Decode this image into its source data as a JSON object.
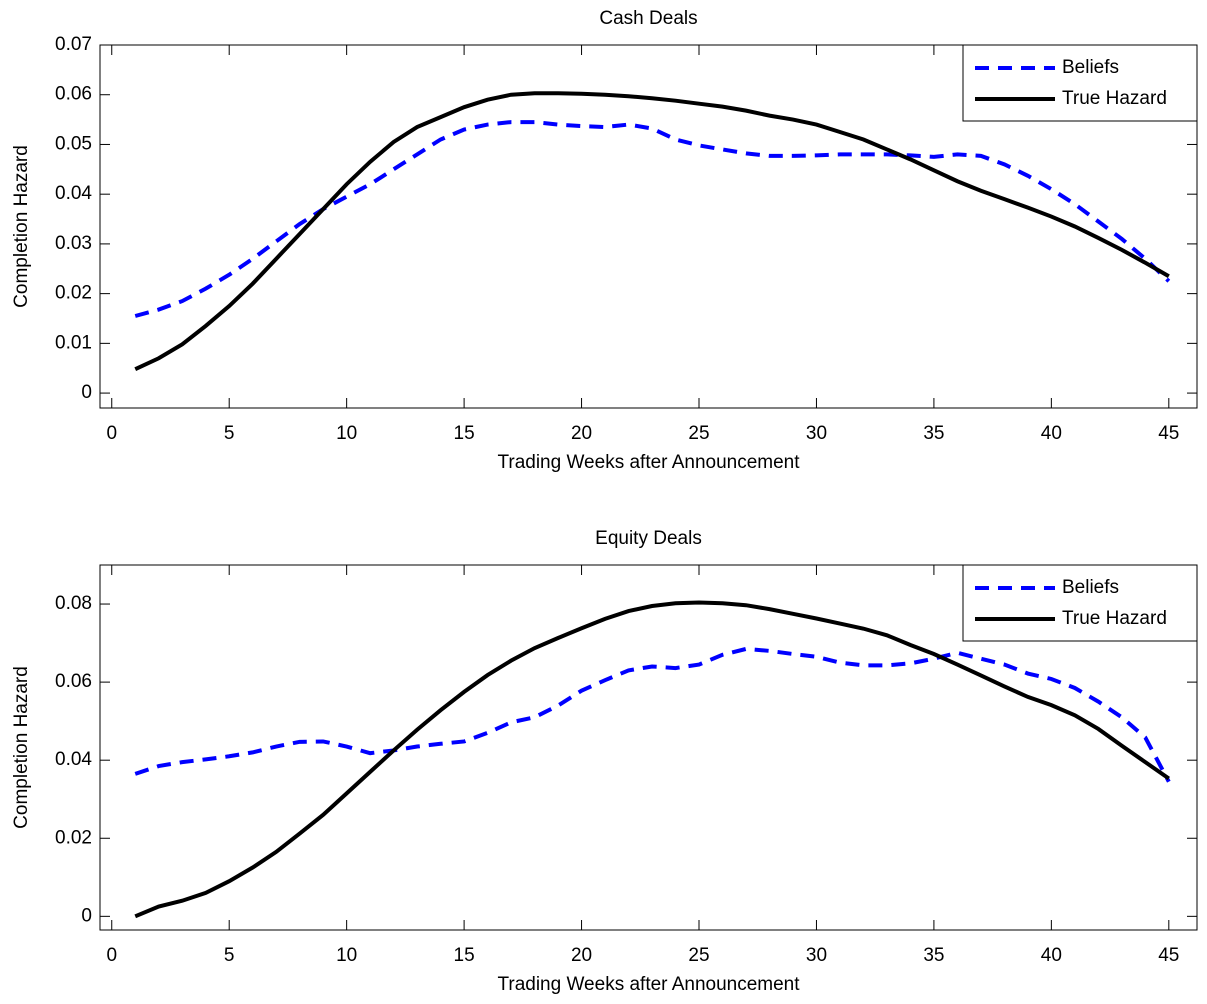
{
  "chart_data": [
    {
      "type": "line",
      "title": "Cash Deals",
      "x_label": "Trading Weeks after Announcement",
      "y_label": "Completion Hazard",
      "x": [
        1,
        2,
        3,
        4,
        5,
        6,
        7,
        8,
        9,
        10,
        11,
        12,
        13,
        14,
        15,
        16,
        17,
        18,
        19,
        20,
        21,
        22,
        23,
        24,
        25,
        26,
        27,
        28,
        29,
        30,
        31,
        32,
        33,
        34,
        35,
        36,
        37,
        38,
        39,
        40,
        41,
        42,
        43,
        44,
        45
      ],
      "series": [
        {
          "name": "Beliefs",
          "color": "#0000ff",
          "dashed": true,
          "values": [
            0.0155,
            0.0168,
            0.0185,
            0.021,
            0.0238,
            0.027,
            0.0305,
            0.034,
            0.037,
            0.0395,
            0.042,
            0.045,
            0.048,
            0.051,
            0.053,
            0.054,
            0.0545,
            0.0545,
            0.054,
            0.0537,
            0.0535,
            0.054,
            0.0532,
            0.051,
            0.0498,
            0.049,
            0.0482,
            0.0477,
            0.0477,
            0.0478,
            0.048,
            0.048,
            0.048,
            0.0478,
            0.0475,
            0.048,
            0.0477,
            0.046,
            0.0437,
            0.041,
            0.038,
            0.0345,
            0.031,
            0.027,
            0.0225
          ]
        },
        {
          "name": "True Hazard",
          "color": "#000000",
          "dashed": false,
          "values": [
            0.0048,
            0.007,
            0.0098,
            0.0135,
            0.0175,
            0.022,
            0.027,
            0.032,
            0.037,
            0.042,
            0.0465,
            0.0505,
            0.0535,
            0.0555,
            0.0575,
            0.059,
            0.06,
            0.0603,
            0.0603,
            0.0602,
            0.06,
            0.0597,
            0.0593,
            0.0588,
            0.0582,
            0.0576,
            0.0568,
            0.0558,
            0.055,
            0.054,
            0.0525,
            0.051,
            0.049,
            0.047,
            0.0448,
            0.0426,
            0.0407,
            0.039,
            0.0373,
            0.0355,
            0.0335,
            0.0312,
            0.0288,
            0.0262,
            0.0235
          ]
        }
      ],
      "xlim": [
        -0.5,
        46.2
      ],
      "xticks": [
        0,
        5,
        10,
        15,
        20,
        25,
        30,
        35,
        40,
        45
      ],
      "ylim": [
        -0.003,
        0.07
      ],
      "yticks": [
        0,
        0.01,
        0.02,
        0.03,
        0.04,
        0.05,
        0.06,
        0.07
      ],
      "legend": "upper right"
    },
    {
      "type": "line",
      "title": "Equity Deals",
      "x_label": "Trading Weeks after Announcement",
      "y_label": "Completion Hazard",
      "x": [
        1,
        2,
        3,
        4,
        5,
        6,
        7,
        8,
        9,
        10,
        11,
        12,
        13,
        14,
        15,
        16,
        17,
        18,
        19,
        20,
        21,
        22,
        23,
        24,
        25,
        26,
        27,
        28,
        29,
        30,
        31,
        32,
        33,
        34,
        35,
        36,
        37,
        38,
        39,
        40,
        41,
        42,
        43,
        44,
        45
      ],
      "series": [
        {
          "name": "Beliefs",
          "color": "#0000ff",
          "dashed": true,
          "values": [
            0.0365,
            0.0385,
            0.0395,
            0.0402,
            0.041,
            0.042,
            0.0435,
            0.0447,
            0.0448,
            0.0435,
            0.0418,
            0.0425,
            0.0435,
            0.0442,
            0.0448,
            0.047,
            0.0497,
            0.051,
            0.054,
            0.0578,
            0.0605,
            0.063,
            0.064,
            0.0636,
            0.0645,
            0.067,
            0.0685,
            0.068,
            0.0672,
            0.0665,
            0.065,
            0.0643,
            0.0643,
            0.0648,
            0.066,
            0.0675,
            0.066,
            0.0645,
            0.0622,
            0.0608,
            0.0585,
            0.055,
            0.051,
            0.0458,
            0.0345
          ]
        },
        {
          "name": "True Hazard",
          "color": "#000000",
          "dashed": false,
          "values": [
            0,
            0.0025,
            0.004,
            0.006,
            0.009,
            0.0125,
            0.0165,
            0.0212,
            0.026,
            0.0315,
            0.037,
            0.0425,
            0.0478,
            0.0528,
            0.0575,
            0.0618,
            0.0655,
            0.0687,
            0.0713,
            0.0738,
            0.0762,
            0.0782,
            0.0795,
            0.0802,
            0.0804,
            0.0802,
            0.0797,
            0.0787,
            0.0775,
            0.0763,
            0.075,
            0.0737,
            0.072,
            0.0695,
            0.0672,
            0.0645,
            0.0617,
            0.0589,
            0.0562,
            0.0541,
            0.0515,
            0.048,
            0.0437,
            0.0395,
            0.0353
          ]
        }
      ],
      "xlim": [
        -0.5,
        46.2
      ],
      "xticks": [
        0,
        5,
        10,
        15,
        20,
        25,
        30,
        35,
        40,
        45
      ],
      "ylim": [
        -0.0035,
        0.09
      ],
      "yticks": [
        0,
        0.02,
        0.04,
        0.06,
        0.08
      ],
      "legend": "upper right"
    }
  ]
}
